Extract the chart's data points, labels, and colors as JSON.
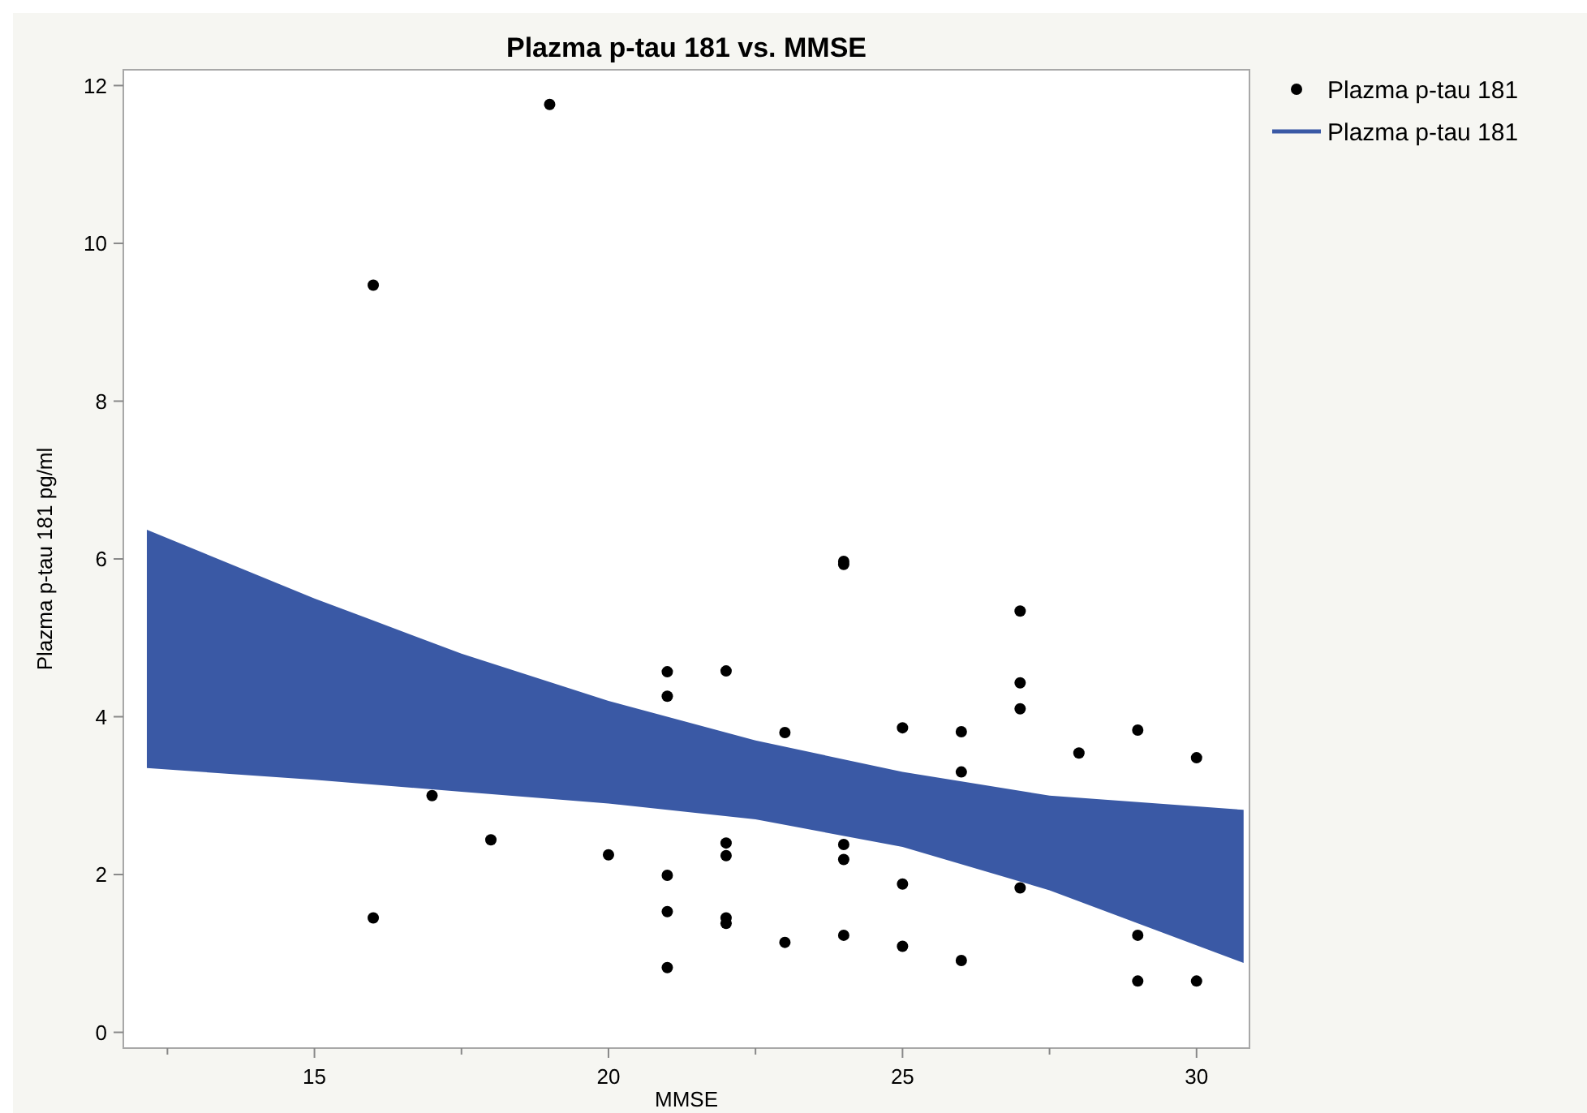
{
  "chart_data": {
    "type": "scatter",
    "title": "Plazma p-tau 181 vs. MMSE",
    "xlabel": "MMSE",
    "ylabel": "Plazma p-tau 181 pg/ml",
    "xlim": [
      11.75,
      30.9
    ],
    "xticks": [
      {
        "value": 12.5,
        "label": null
      },
      15,
      {
        "value": 17.5,
        "label": null
      },
      20,
      {
        "value": 22.5,
        "label": null
      },
      25,
      {
        "value": 27.5,
        "label": null
      },
      30
    ],
    "ylim": [
      -0.2,
      12.2
    ],
    "yticks": [
      0,
      2,
      4,
      6,
      8,
      10,
      12
    ],
    "grid": false,
    "legend": "top right",
    "marker": "circle",
    "series": [
      {
        "name": "Plazma p-tau 181",
        "color": "#000000",
        "x": [
          16,
          19,
          16,
          17,
          18,
          20,
          21,
          21,
          21,
          21,
          21,
          22,
          22,
          22,
          22,
          22,
          23,
          23,
          24,
          24,
          24,
          24,
          24,
          25,
          25,
          25,
          26,
          26,
          26,
          27,
          27,
          27,
          27,
          28,
          29,
          29,
          29,
          30,
          30
        ],
        "values": [
          9.47,
          11.76,
          1.45,
          3.0,
          2.44,
          2.25,
          4.57,
          4.26,
          1.99,
          1.53,
          0.82,
          4.58,
          2.4,
          2.24,
          1.45,
          1.38,
          3.8,
          1.14,
          5.97,
          5.93,
          2.38,
          2.19,
          1.23,
          3.86,
          1.88,
          1.09,
          3.81,
          3.3,
          0.91,
          5.34,
          4.43,
          4.1,
          1.83,
          3.54,
          3.83,
          1.23,
          0.65,
          3.48,
          0.65
        ]
      },
      {
        "name": "Plazma p-tau 181",
        "type": "line",
        "color": "#3a59a5",
        "line_style": "solid",
        "x": [
          12.15,
          15,
          17.5,
          20,
          22.5,
          25,
          27.5,
          30.8
        ],
        "values": [
          null,
          null,
          null,
          null,
          null,
          null,
          null,
          null
        ],
        "lower": [
          3.35,
          3.2,
          3.05,
          2.9,
          2.7,
          2.35,
          1.8,
          0.88
        ],
        "upper": [
          6.37,
          5.5,
          4.8,
          4.2,
          3.7,
          3.3,
          3.0,
          2.82
        ]
      }
    ]
  }
}
